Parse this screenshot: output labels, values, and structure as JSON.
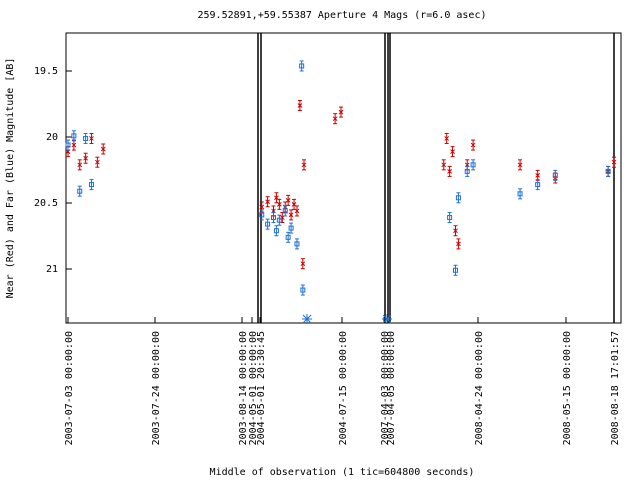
{
  "chart_data": {
    "type": "scatter",
    "title": "259.52891,+59.55387   Aperture 4 Mags (r=6.0 asec)",
    "xlabel": "Middle of observation (1 tic=604800 seconds)",
    "ylabel": "Near (Red) and Far (Blue) Magnitude [AB]",
    "ylim": [
      21.4,
      19.2
    ],
    "y_inverted": true,
    "grid": false,
    "y_ticks": [
      "19.5",
      "20",
      "20.5",
      "21"
    ],
    "x_tick_labels": [
      "2003-07-03 00:00:00",
      "2003-07-24 00:00:00",
      "2003-08-14 00:00:00",
      "2004-05-01 00:00:00",
      "2004-05-01 20:30:45",
      "2004-07-15 00:00:00",
      "2007-04-03 00:00:00",
      "2007-04-05 00:00:00",
      "2008-04-24 00:00:00",
      "2008-05-15 00:00:00",
      "2008-08-18 17:01:57"
    ],
    "colors": {
      "near": "#cc0000",
      "far": "#1f6fd6",
      "axis": "#000000"
    },
    "series": [
      {
        "name": "Near (Red)",
        "points": [
          [
            0.8,
            20.1
          ],
          [
            0.9,
            20.05
          ],
          [
            1.0,
            20.2
          ],
          [
            1.1,
            20.15
          ],
          [
            1.2,
            20.0
          ],
          [
            1.3,
            20.18
          ],
          [
            1.4,
            20.08
          ],
          [
            4.1,
            20.52
          ],
          [
            4.2,
            20.48
          ],
          [
            4.3,
            20.55
          ],
          [
            4.35,
            20.45
          ],
          [
            4.4,
            20.5
          ],
          [
            4.45,
            20.6
          ],
          [
            4.5,
            20.52
          ],
          [
            4.55,
            20.47
          ],
          [
            4.6,
            20.58
          ],
          [
            4.65,
            20.5
          ],
          [
            4.7,
            20.55
          ],
          [
            4.75,
            19.75
          ],
          [
            4.8,
            20.95
          ],
          [
            4.82,
            20.2
          ],
          [
            5.35,
            19.85
          ],
          [
            5.45,
            19.8
          ],
          [
            7.2,
            20.2
          ],
          [
            7.25,
            20.0
          ],
          [
            7.3,
            20.25
          ],
          [
            7.35,
            20.1
          ],
          [
            7.4,
            20.7
          ],
          [
            7.45,
            20.8
          ],
          [
            7.6,
            20.2
          ],
          [
            7.7,
            20.05
          ],
          [
            8.5,
            20.2
          ],
          [
            8.8,
            20.28
          ],
          [
            9.1,
            20.3
          ],
          [
            10.0,
            20.25
          ],
          [
            10.1,
            20.18
          ]
        ]
      },
      {
        "name": "Far (Blue)",
        "points": [
          [
            0.8,
            20.05
          ],
          [
            0.9,
            19.98
          ],
          [
            1.0,
            20.4
          ],
          [
            1.1,
            20.0
          ],
          [
            1.2,
            20.35
          ],
          [
            4.1,
            20.58
          ],
          [
            4.2,
            20.65
          ],
          [
            4.3,
            20.6
          ],
          [
            4.35,
            20.7
          ],
          [
            4.4,
            20.62
          ],
          [
            4.5,
            20.55
          ],
          [
            4.55,
            20.75
          ],
          [
            4.6,
            20.68
          ],
          [
            4.7,
            20.8
          ],
          [
            4.78,
            19.45
          ],
          [
            4.8,
            21.15
          ],
          [
            7.3,
            20.6
          ],
          [
            7.4,
            21.0
          ],
          [
            7.45,
            20.45
          ],
          [
            7.6,
            20.25
          ],
          [
            7.7,
            20.2
          ],
          [
            8.5,
            20.42
          ],
          [
            8.8,
            20.35
          ],
          [
            9.1,
            20.28
          ],
          [
            10.0,
            20.25
          ]
        ]
      }
    ]
  }
}
